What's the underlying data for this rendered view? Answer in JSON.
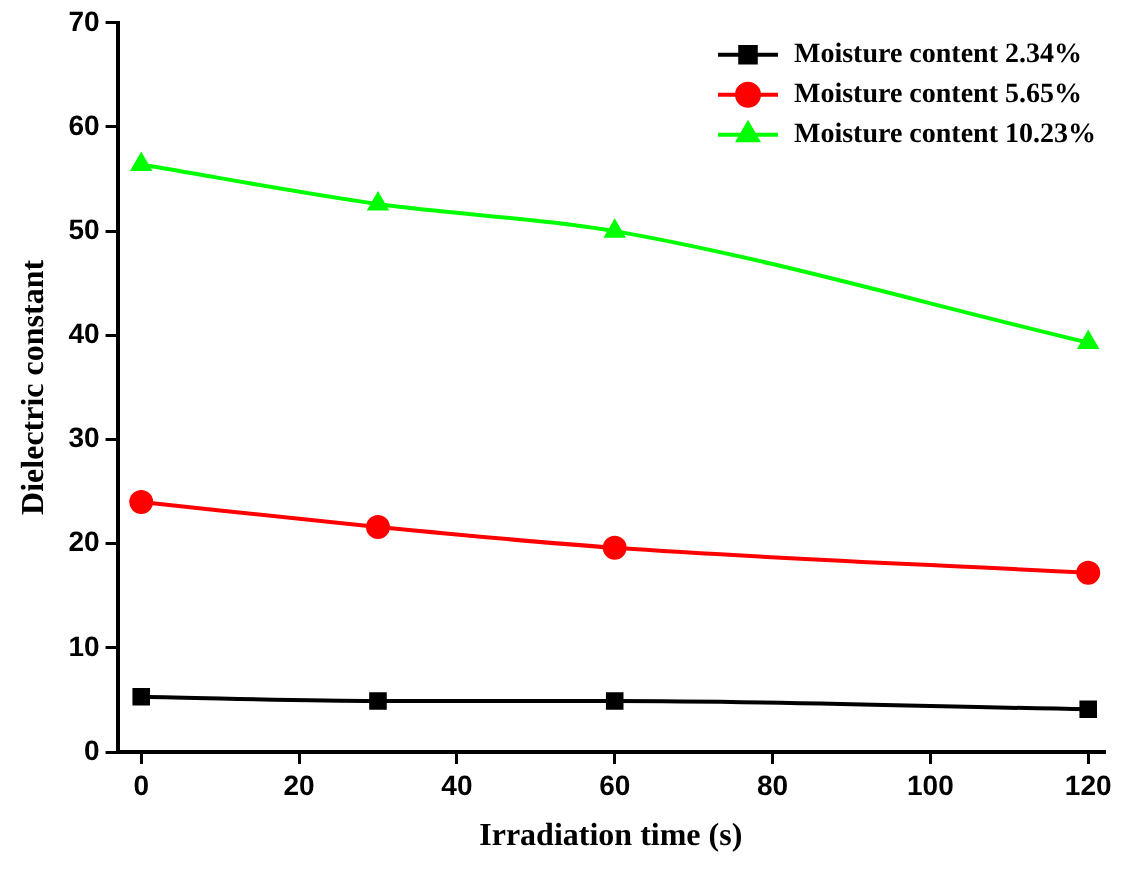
{
  "chart_data": {
    "type": "line",
    "xlabel": "Irradiation time (s)",
    "ylabel": "Dielectric constant",
    "x": [
      0,
      30,
      60,
      120
    ],
    "series": [
      {
        "name": "Moisture content 2.34%",
        "color": "#000000",
        "marker": "square",
        "values": [
          5.3,
          4.9,
          4.9,
          4.1
        ]
      },
      {
        "name": "Moisture content 5.65%",
        "color": "#ff0000",
        "marker": "circle",
        "values": [
          24.0,
          21.6,
          19.6,
          17.2
        ]
      },
      {
        "name": "Moisture content 10.23%",
        "color": "#00ff00",
        "marker": "triangle",
        "values": [
          56.4,
          52.6,
          50.0,
          39.3
        ]
      }
    ],
    "xlim": [
      -3,
      122
    ],
    "xticks": [
      0,
      20,
      40,
      60,
      80,
      100,
      120
    ],
    "ylim": [
      0,
      70
    ],
    "yticks": [
      0,
      10,
      20,
      30,
      40,
      50,
      60,
      70
    ],
    "grid": false,
    "legend": "top right",
    "line_style": "solid"
  }
}
